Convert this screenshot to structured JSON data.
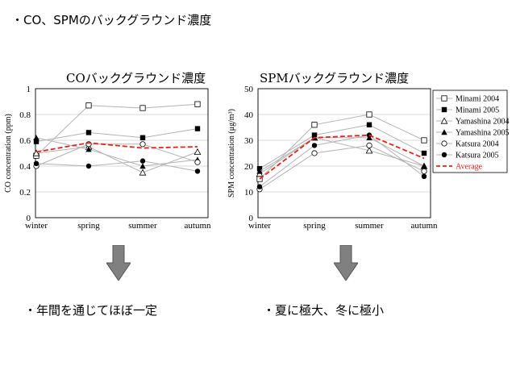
{
  "slide_title": "・CO、SPMのバックグラウンド濃度",
  "bullets": {
    "left": "・年間を通じてほぼ一定",
    "right": "・夏に極大、冬に極小"
  },
  "colors": {
    "average": "#e8231b",
    "series_line": "#b3b3b3",
    "arrow": "#808080"
  },
  "chart_data": [
    {
      "type": "line",
      "title": "COバックグラウンド濃度",
      "xlabel": "",
      "ylabel": "CO concentration (ppm)",
      "categories": [
        "winter",
        "spring",
        "summer",
        "autumn"
      ],
      "ylim": [
        0,
        1
      ],
      "yticks": [
        "0",
        "0.2",
        "0.4",
        "0.6",
        "0.8",
        "1"
      ],
      "legend_position": "none",
      "series": [
        {
          "name": "Minami 2004",
          "marker": "open-square",
          "values": [
            0.48,
            0.87,
            0.85,
            0.88
          ]
        },
        {
          "name": "Minami 2005",
          "marker": "filled-square",
          "values": [
            0.59,
            0.66,
            0.62,
            0.69
          ]
        },
        {
          "name": "Yamashina 2004",
          "marker": "open-triangle",
          "values": [
            0.5,
            0.55,
            0.35,
            0.51
          ]
        },
        {
          "name": "Yamashina 2005",
          "marker": "filled-triangle",
          "values": [
            0.62,
            0.53,
            0.4,
            0.45
          ]
        },
        {
          "name": "Katsura 2004",
          "marker": "open-circle",
          "values": [
            0.4,
            0.57,
            0.57,
            0.43
          ]
        },
        {
          "name": "Katsura 2005",
          "marker": "filled-circle",
          "values": [
            0.42,
            0.4,
            0.44,
            0.36
          ]
        },
        {
          "name": "Average",
          "marker": "none",
          "dashed": true,
          "values": [
            0.51,
            0.58,
            0.54,
            0.55
          ]
        }
      ]
    },
    {
      "type": "line",
      "title": "SPMバックグラウンド濃度",
      "xlabel": "",
      "ylabel": "SPM concentration (μg/m³)",
      "categories": [
        "winter",
        "spring",
        "summer",
        "autumn"
      ],
      "ylim": [
        0,
        50
      ],
      "yticks": [
        "0",
        "10",
        "20",
        "30",
        "40",
        "50"
      ],
      "legend_position": "right",
      "series": [
        {
          "name": "Minami 2004",
          "marker": "open-square",
          "values": [
            15,
            36,
            40,
            30
          ]
        },
        {
          "name": "Minami 2005",
          "marker": "filled-square",
          "values": [
            19,
            32,
            36,
            25
          ]
        },
        {
          "name": "Yamashina 2004",
          "marker": "open-triangle",
          "values": [
            17,
            31,
            26,
            20
          ]
        },
        {
          "name": "Yamashina 2005",
          "marker": "filled-triangle",
          "values": [
            18,
            31,
            31,
            20
          ]
        },
        {
          "name": "Katsura 2004",
          "marker": "open-circle",
          "values": [
            11,
            25,
            28,
            18
          ]
        },
        {
          "name": "Katsura 2005",
          "marker": "filled-circle",
          "values": [
            12,
            28,
            32,
            16
          ]
        },
        {
          "name": "Average",
          "marker": "none",
          "dashed": true,
          "values": [
            15,
            31,
            32,
            23
          ]
        }
      ]
    }
  ]
}
